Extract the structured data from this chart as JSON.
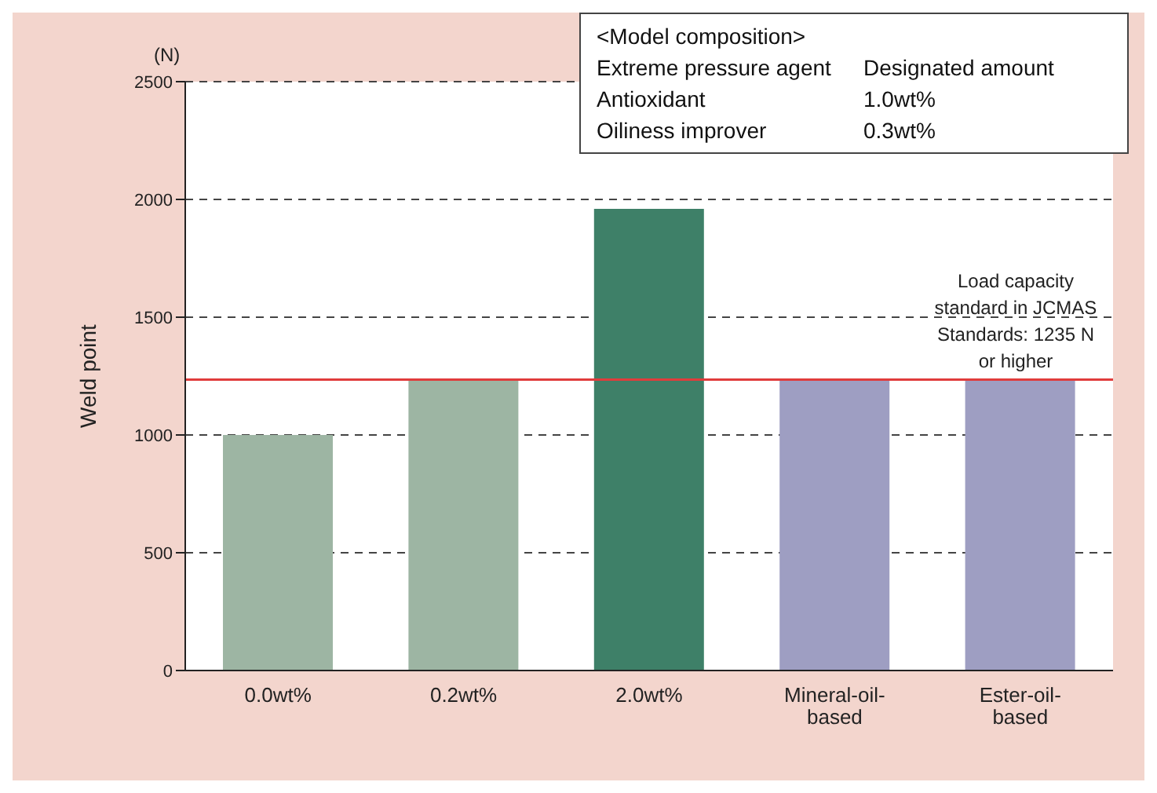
{
  "chart_data": {
    "type": "bar",
    "ylabel": "Weld point",
    "categories": [
      "0.0wt%",
      "0.2wt%",
      "2.0wt%",
      "Mineral-oil-based",
      "Ester-oil-based"
    ],
    "values": [
      1000,
      1235,
      1960,
      1235,
      1235
    ],
    "colors": [
      "#9db5a3",
      "#9db5a3",
      "#3e8068",
      "#9e9ec2",
      "#9e9ec2"
    ],
    "ylim": [
      0,
      2500
    ],
    "yticks": [
      0,
      500,
      1000,
      1500,
      2000,
      2500
    ],
    "grid": "y",
    "ref_lines": [
      {
        "axis": "y",
        "value": 1235,
        "label": "Load capacity standard in JCMAS Standards: 1235 N or higher",
        "color": "#e03c3c"
      }
    ],
    "annotations": [
      "(N)",
      "<Model composition>",
      "Extreme pressure agent",
      "Designated amount",
      "Antioxidant",
      "1.0wt%",
      "Oiliness improver",
      "0.3wt%"
    ]
  }
}
